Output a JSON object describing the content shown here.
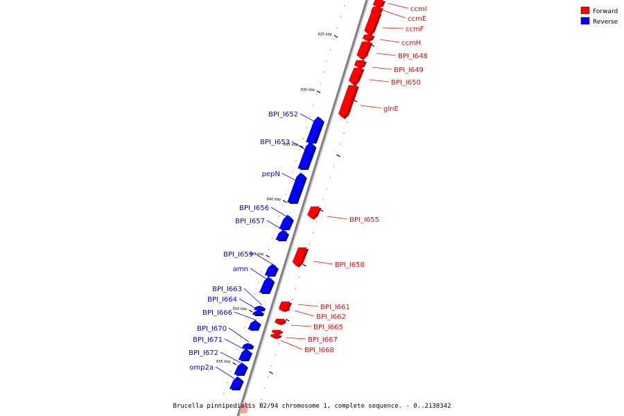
{
  "caption": "Brucella pinnipedialis B2/94 chromosome 1, complete sequence. - 0..2138342",
  "legend": [
    {
      "label": "Forward",
      "color": "#ff0000"
    },
    {
      "label": "Reverse",
      "color": "#0000ff"
    }
  ],
  "colors": {
    "forward": "#ff0000",
    "reverse": "#0000ff",
    "axis": "#808080"
  },
  "ticks": [
    "625 kbp",
    "630 kbp",
    "635 kbp",
    "640 kbp",
    "645 kbp",
    "650 kbp",
    "655 kbp"
  ],
  "genes": [
    {
      "name": "ccmI",
      "strand": "forward"
    },
    {
      "name": "ccmE",
      "strand": "forward"
    },
    {
      "name": "ccmF",
      "strand": "forward"
    },
    {
      "name": "ccmH",
      "strand": "forward"
    },
    {
      "name": "BPI_I648",
      "strand": "forward"
    },
    {
      "name": "BPI_I649",
      "strand": "forward"
    },
    {
      "name": "BPI_I650",
      "strand": "forward"
    },
    {
      "name": "glnE",
      "strand": "forward"
    },
    {
      "name": "BPI_I652",
      "strand": "reverse"
    },
    {
      "name": "BPI_I653",
      "strand": "reverse"
    },
    {
      "name": "pepN",
      "strand": "reverse"
    },
    {
      "name": "BPI_I655",
      "strand": "forward"
    },
    {
      "name": "BPI_I656",
      "strand": "reverse"
    },
    {
      "name": "BPI_I657",
      "strand": "reverse"
    },
    {
      "name": "BPI_I658",
      "strand": "forward"
    },
    {
      "name": "BPI_I659",
      "strand": "reverse"
    },
    {
      "name": "amn",
      "strand": "reverse"
    },
    {
      "name": "BPI_I661",
      "strand": "forward"
    },
    {
      "name": "BPI_I662",
      "strand": "forward"
    },
    {
      "name": "BPI_I663",
      "strand": "reverse"
    },
    {
      "name": "BPI_I664",
      "strand": "reverse"
    },
    {
      "name": "BPI_I665",
      "strand": "forward"
    },
    {
      "name": "BPI_I666",
      "strand": "reverse"
    },
    {
      "name": "BPI_I667",
      "strand": "forward"
    },
    {
      "name": "BPI_I668",
      "strand": "forward"
    },
    {
      "name": "BPI_I670",
      "strand": "reverse"
    },
    {
      "name": "BPI_I671",
      "strand": "reverse"
    },
    {
      "name": "BPI_I672",
      "strand": "reverse"
    },
    {
      "name": "omp2a",
      "strand": "reverse"
    }
  ]
}
